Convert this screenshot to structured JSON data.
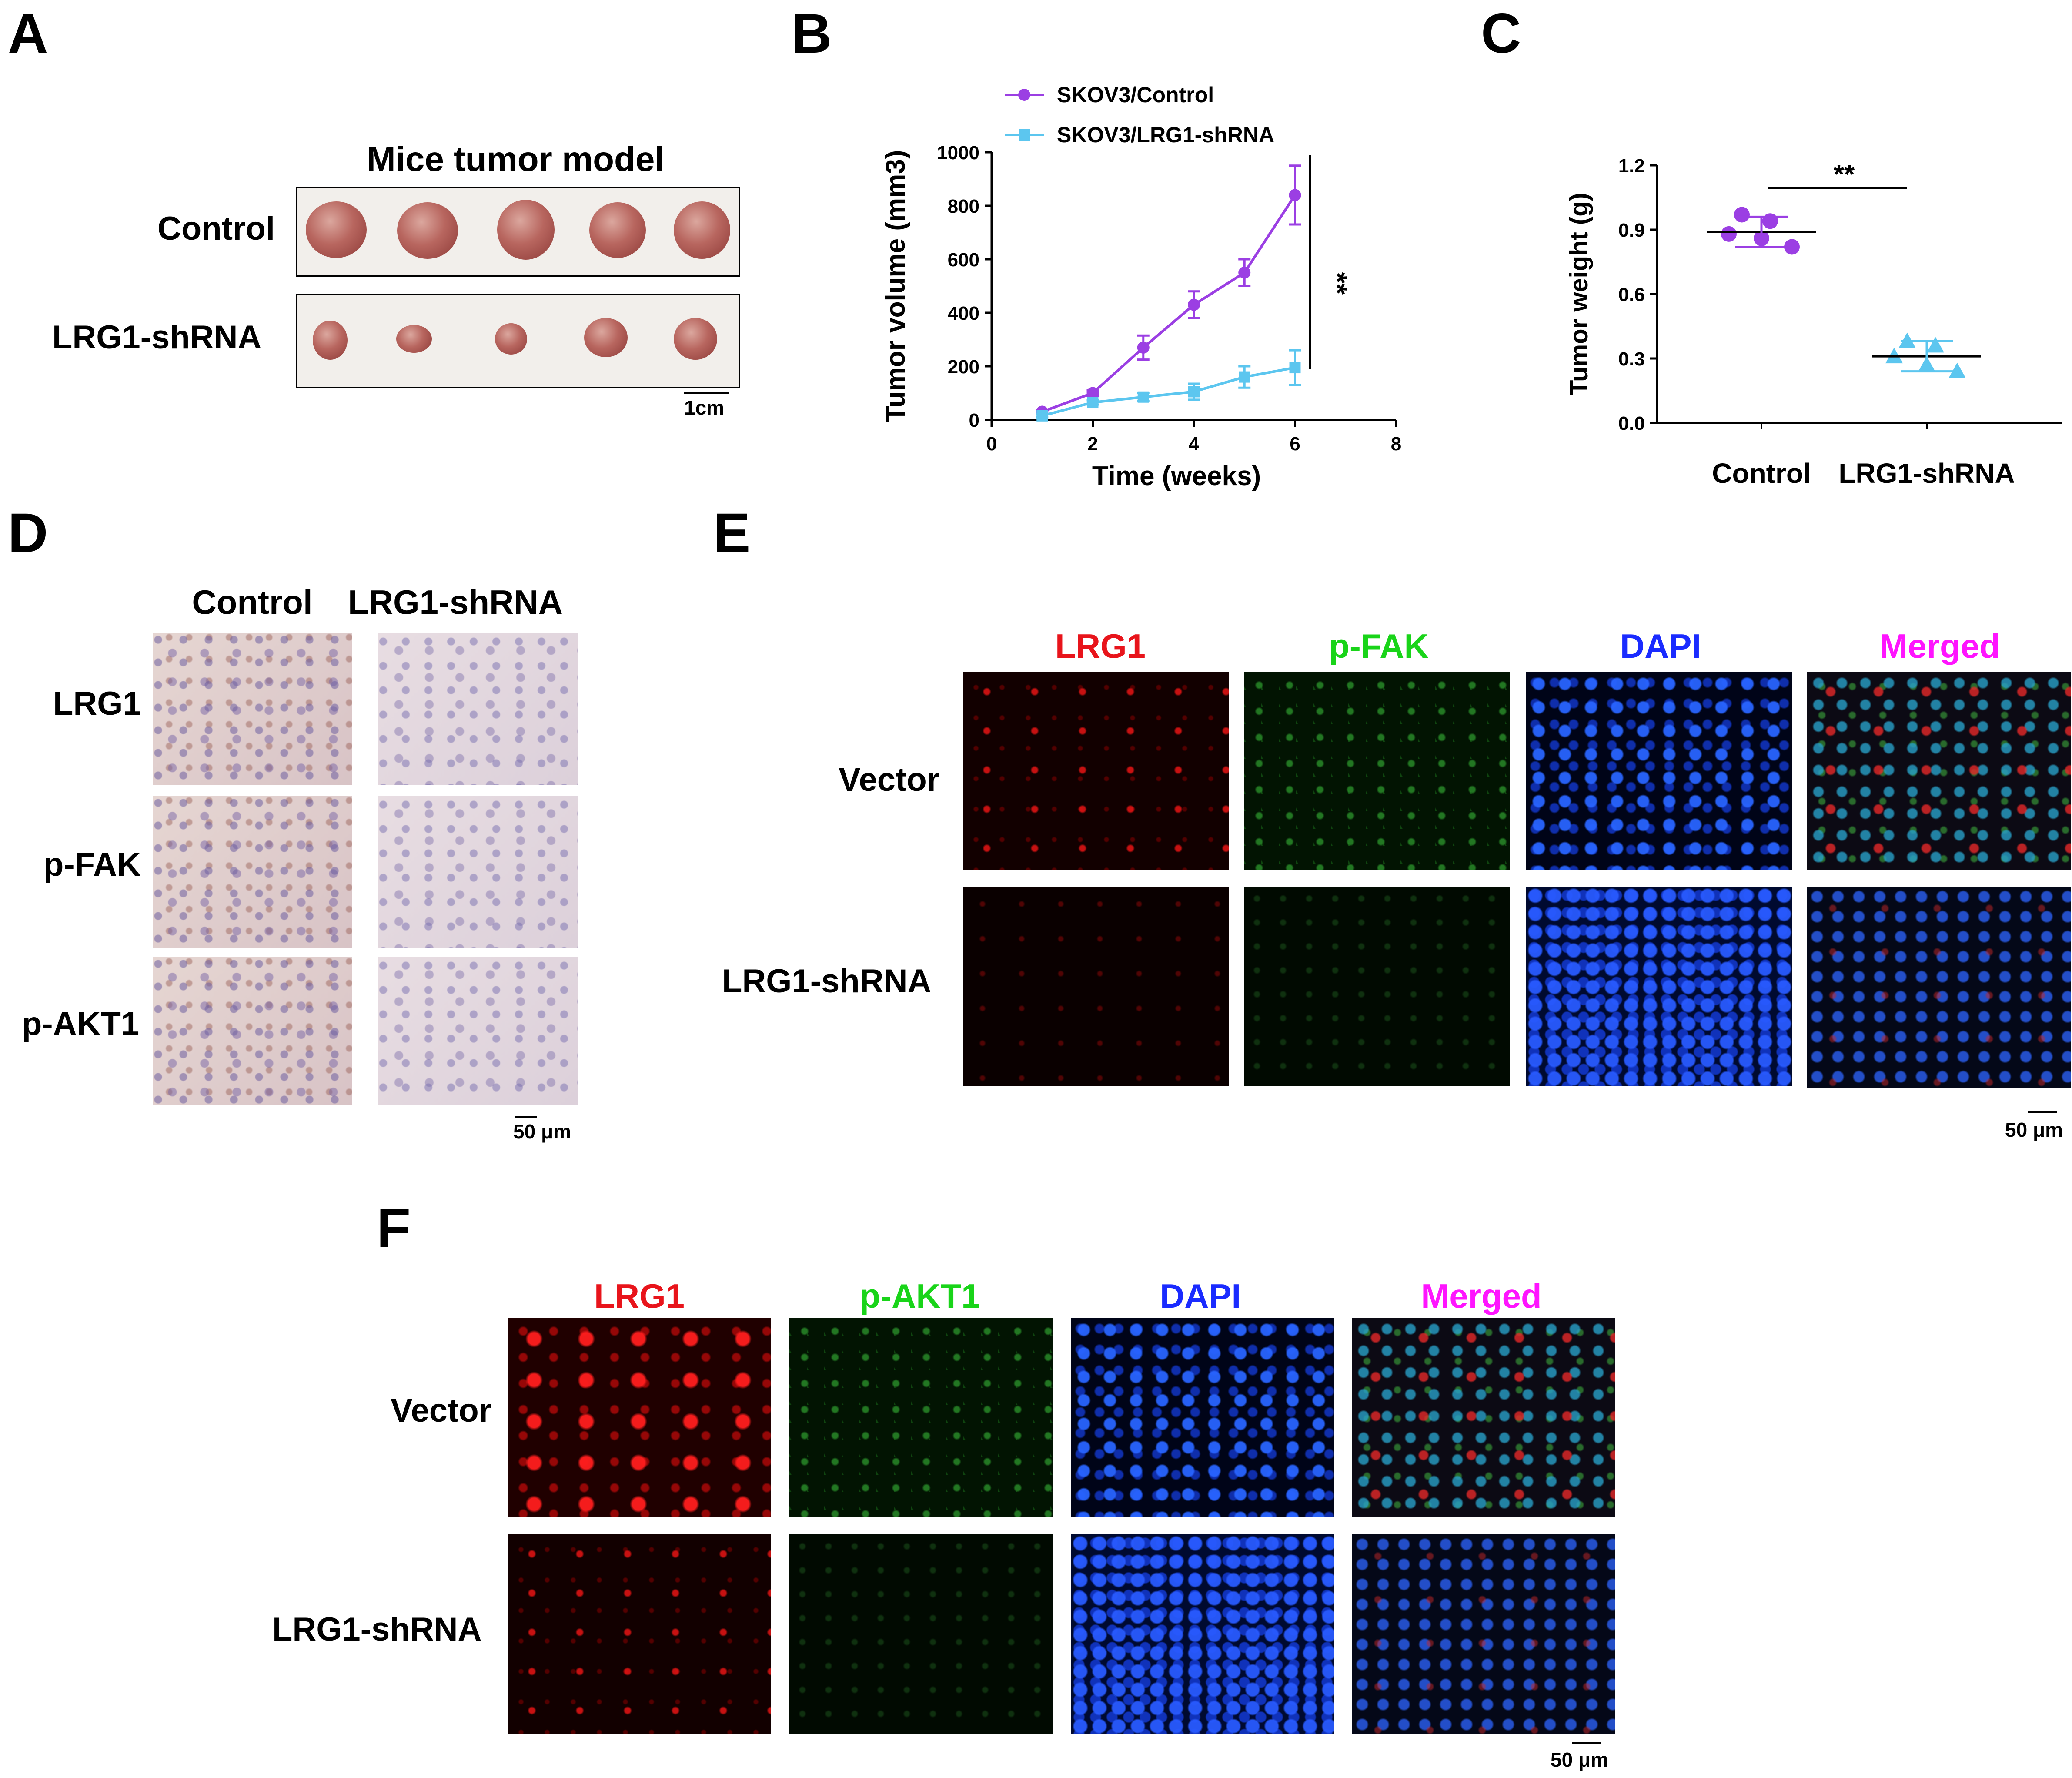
{
  "panels": {
    "A": {
      "label": "A",
      "title": "Mice tumor model",
      "rows": [
        "Control",
        "LRG1-shRNA"
      ],
      "scale": "1cm"
    },
    "B": {
      "label": "B"
    },
    "C": {
      "label": "C"
    },
    "D": {
      "label": "D",
      "columns": [
        "Control",
        "LRG1-shRNA"
      ],
      "rows": [
        "LRG1",
        "p-FAK",
        "p-AKT1"
      ],
      "scale": "50 μm"
    },
    "E": {
      "label": "E",
      "columns": [
        "LRG1",
        "p-FAK",
        "DAPI",
        "Merged"
      ],
      "rows": [
        "Vector",
        "LRG1-shRNA"
      ],
      "scale": "50 μm"
    },
    "F": {
      "label": "F",
      "columns": [
        "LRG1",
        "p-AKT1",
        "DAPI",
        "Merged"
      ],
      "rows": [
        "Vector",
        "LRG1-shRNA"
      ],
      "scale": "50 μm"
    }
  },
  "colors": {
    "red": "#e8141b",
    "green": "#19d419",
    "blue": "#1a2bff",
    "magenta": "#ff14ff",
    "control_series": "#9b3fe3",
    "shrna_series": "#5cc6ef"
  },
  "chart_data": [
    {
      "panel": "B",
      "type": "line",
      "xlabel": "Time (weeks)",
      "ylabel": "Tumor volume (mm3)",
      "xlim": [
        0,
        8
      ],
      "ylim": [
        0,
        1000
      ],
      "xticks": [
        "0",
        "2",
        "4",
        "6",
        "8"
      ],
      "yticks": [
        "0",
        "200",
        "400",
        "600",
        "800",
        "1000"
      ],
      "legend_position": "top",
      "significance": "**",
      "series": [
        {
          "name": "SKOV3/Control",
          "marker": "circle",
          "x": [
            1,
            2,
            3,
            4,
            5,
            6
          ],
          "y": [
            30,
            100,
            270,
            430,
            550,
            840
          ],
          "err": [
            5,
            10,
            45,
            50,
            50,
            110
          ]
        },
        {
          "name": "SKOV3/LRG1-shRNA",
          "marker": "square",
          "x": [
            1,
            2,
            3,
            4,
            5,
            6
          ],
          "y": [
            15,
            65,
            85,
            105,
            160,
            195
          ],
          "err": [
            5,
            8,
            15,
            30,
            40,
            65
          ]
        }
      ]
    },
    {
      "panel": "C",
      "type": "scatter",
      "ylabel": "Tumor weight (g)",
      "ylim": [
        0,
        1.2
      ],
      "yticks": [
        "0.0",
        "0.3",
        "0.6",
        "0.9",
        "1.2"
      ],
      "categories": [
        "Control",
        "LRG1-shRNA"
      ],
      "significance": "**",
      "groups": [
        {
          "category": "Control",
          "marker": "circle",
          "mean": 0.89,
          "sd": 0.07,
          "values": [
            0.97,
            0.94,
            0.88,
            0.86,
            0.82
          ]
        },
        {
          "category": "LRG1-shRNA",
          "marker": "triangle",
          "mean": 0.31,
          "sd": 0.07,
          "values": [
            0.38,
            0.36,
            0.31,
            0.27,
            0.24
          ]
        }
      ]
    }
  ]
}
